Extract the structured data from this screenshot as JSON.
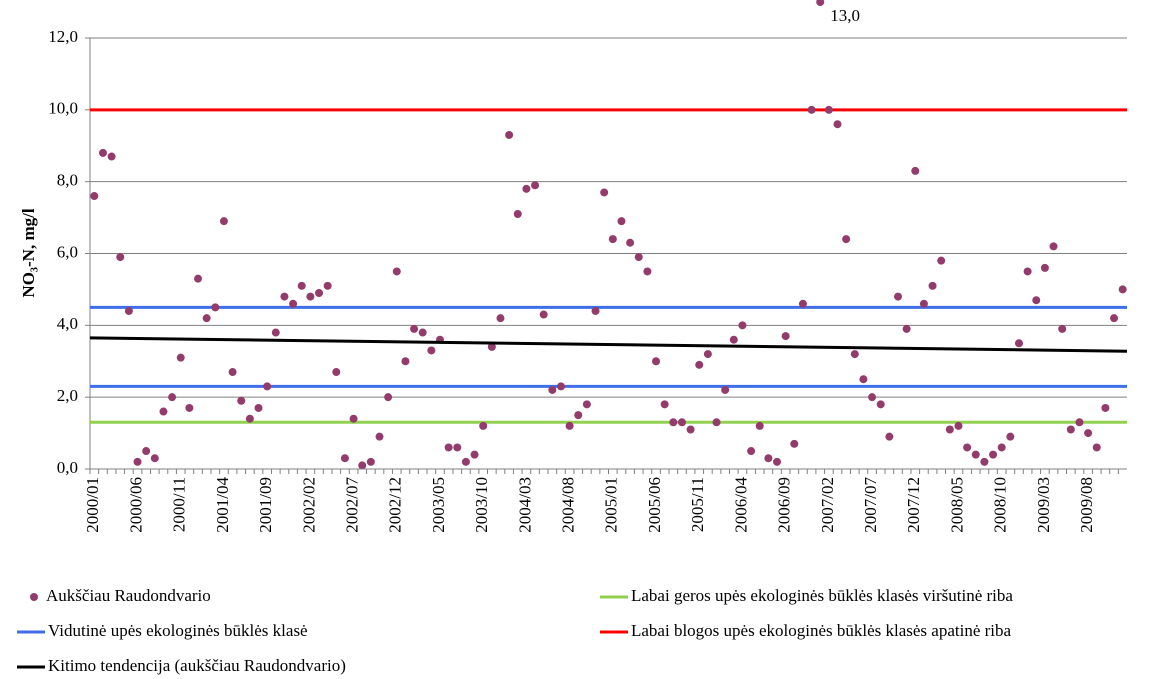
{
  "chart_data": {
    "type": "scatter",
    "y_label": "NO₃-N, mg/l",
    "categories": [
      "2000/01",
      null,
      null,
      null,
      null,
      "2000/06",
      null,
      null,
      null,
      null,
      "2000/11",
      null,
      null,
      null,
      null,
      "2001/04",
      null,
      null,
      null,
      null,
      "2001/09",
      null,
      null,
      null,
      null,
      "2002/02",
      null,
      null,
      null,
      null,
      "2002/07",
      null,
      null,
      null,
      null,
      "2002/12",
      null,
      null,
      null,
      null,
      "2003/05",
      null,
      null,
      null,
      null,
      "2003/10",
      null,
      null,
      null,
      null,
      "2004/03",
      null,
      null,
      null,
      null,
      "2004/08",
      null,
      null,
      null,
      null,
      "2005/01",
      null,
      null,
      null,
      null,
      "2005/06",
      null,
      null,
      null,
      null,
      "2005/11",
      null,
      null,
      null,
      null,
      "2006/04",
      null,
      null,
      null,
      null,
      "2006/09",
      null,
      null,
      null,
      null,
      "2007/02",
      null,
      null,
      null,
      null,
      "2007/07",
      null,
      null,
      null,
      null,
      "2007/12",
      null,
      null,
      null,
      null,
      "2008/05",
      null,
      null,
      null,
      null,
      "2008/10",
      null,
      null,
      null,
      null,
      "2009/03",
      null,
      null,
      null,
      null,
      "2009/08",
      null,
      null,
      null,
      null
    ],
    "series": [
      {
        "name": "Aukščiau Raudondvario",
        "color": "#933c6b",
        "values": [
          7.6,
          8.8,
          8.7,
          5.9,
          4.4,
          0.2,
          0.5,
          0.3,
          1.6,
          2.0,
          3.1,
          1.7,
          5.3,
          4.2,
          4.5,
          6.9,
          2.7,
          1.9,
          1.4,
          1.7,
          2.3,
          3.8,
          4.8,
          4.6,
          5.1,
          4.8,
          4.9,
          5.1,
          2.7,
          0.3,
          1.4,
          0.1,
          0.2,
          0.9,
          2.0,
          5.5,
          3.0,
          3.9,
          3.8,
          3.3,
          3.6,
          0.6,
          0.6,
          0.2,
          0.4,
          1.2,
          3.4,
          4.2,
          9.3,
          7.1,
          7.8,
          7.9,
          4.3,
          2.2,
          2.3,
          1.2,
          1.5,
          1.8,
          4.4,
          7.7,
          6.4,
          6.9,
          6.3,
          5.9,
          5.5,
          3.0,
          1.8,
          1.3,
          1.3,
          1.1,
          2.9,
          3.2,
          1.3,
          2.2,
          3.6,
          4.0,
          0.5,
          1.2,
          0.3,
          0.2,
          3.7,
          0.7,
          4.6,
          10.0,
          13.0,
          10.0,
          9.6,
          6.4,
          3.2,
          2.5,
          2.0,
          1.8,
          0.9,
          4.8,
          3.9,
          8.3,
          4.6,
          5.1,
          5.8,
          1.1,
          1.2,
          0.6,
          0.4,
          0.2,
          0.4,
          0.6,
          0.9,
          3.5,
          5.5,
          4.7,
          5.6,
          6.2,
          3.9,
          1.1,
          1.3,
          1.0,
          0.6,
          1.7,
          4.2,
          5.0
        ],
        "value_labels": [
          null,
          null,
          null,
          null,
          null,
          null,
          null,
          null,
          null,
          null,
          null,
          null,
          null,
          null,
          null,
          null,
          null,
          null,
          null,
          null,
          null,
          null,
          null,
          null,
          null,
          null,
          null,
          null,
          null,
          null,
          null,
          null,
          null,
          null,
          null,
          null,
          null,
          null,
          null,
          null,
          null,
          null,
          null,
          null,
          null,
          null,
          null,
          null,
          null,
          null,
          null,
          null,
          null,
          null,
          null,
          null,
          null,
          null,
          null,
          null,
          null,
          null,
          null,
          null,
          null,
          null,
          null,
          null,
          null,
          null,
          null,
          null,
          null,
          null,
          null,
          null,
          null,
          null,
          null,
          null,
          null,
          null,
          null,
          null,
          "13,0",
          null,
          null,
          null,
          null,
          null,
          null,
          null,
          null,
          null,
          null,
          null,
          null,
          null,
          null,
          null,
          null,
          null,
          null,
          null,
          null,
          null,
          null,
          null,
          null,
          null,
          null,
          null,
          null,
          null,
          null,
          null,
          null,
          null,
          null,
          null
        ]
      }
    ],
    "reference_lines": [
      {
        "name": "Labai geros upės ekologinės būklės klasės viršutinė riba",
        "color": "#92d050",
        "values": [
          1.3
        ]
      },
      {
        "name": "Vidutinė upės ekologinės būklės klasė",
        "color": "#3f6fe8",
        "values": [
          2.3,
          4.5
        ]
      },
      {
        "name": "Labai blogos upės ekologinės būklės klasės apatinė riba",
        "color": "#ff0000",
        "values": [
          10.0
        ]
      }
    ],
    "trend": {
      "name": "Kitimo tendencija (aukščiau Raudondvario)",
      "color": "#000000",
      "values": [
        3.65,
        3.28
      ]
    },
    "ylim": [
      0,
      12
    ],
    "yticks": [
      {
        "value": 0,
        "label": "0,0"
      },
      {
        "value": 2,
        "label": "2,0"
      },
      {
        "value": 4,
        "label": "4,0"
      },
      {
        "value": 6,
        "label": "6,0"
      },
      {
        "value": 8,
        "label": "8,0"
      },
      {
        "value": 10,
        "label": "10,0"
      },
      {
        "value": 12,
        "label": "12,0"
      }
    ],
    "grid": true
  }
}
